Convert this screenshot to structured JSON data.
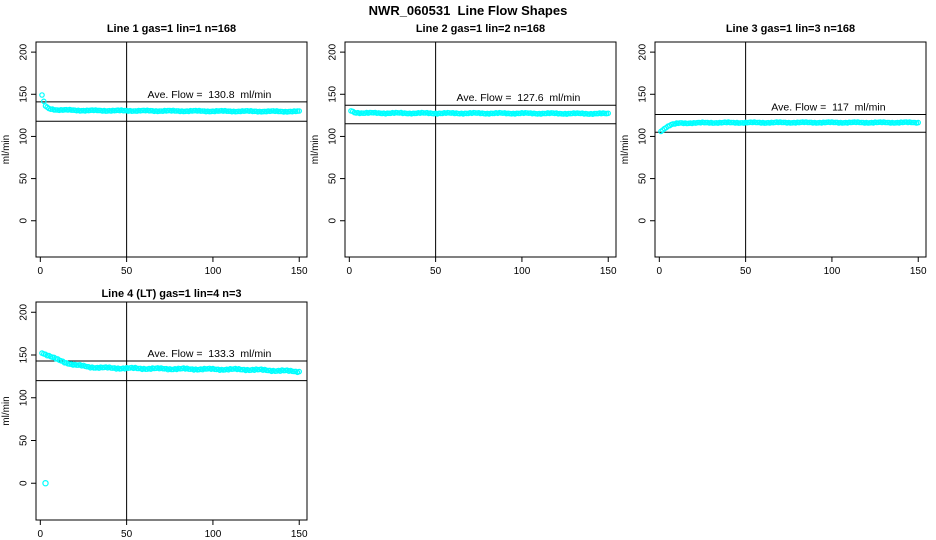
{
  "page": {
    "title": "NWR_060531  Line Flow Shapes"
  },
  "axes": {
    "ylabel": "ml/min",
    "yticks": [
      0,
      50,
      100,
      150,
      200
    ],
    "xticks": [
      0,
      50,
      100,
      150
    ],
    "ylim": [
      -43,
      212
    ],
    "xlim": [
      -2.5,
      154.5
    ]
  },
  "chart_data": [
    {
      "type": "scatter",
      "title": "Line 1 gas=1 lin=1 n=168",
      "annotation": "Ave. Flow =  130.8  ml/min",
      "ave_flow_ml_min": 130.8,
      "upper_line": 141,
      "lower_line": 118,
      "vline_x": 50,
      "point_color": "#00FFFF",
      "n_points": 150,
      "jitter": 0.7,
      "anchors": [
        [
          1,
          149
        ],
        [
          2,
          141
        ],
        [
          3,
          136
        ],
        [
          5,
          133
        ],
        [
          10,
          131.5
        ],
        [
          25,
          130.8
        ],
        [
          60,
          130.4
        ],
        [
          100,
          130
        ],
        [
          150,
          129.6
        ]
      ],
      "outliers": []
    },
    {
      "type": "scatter",
      "title": "Line 2 gas=1 lin=2 n=168",
      "annotation": "Ave. Flow =  127.6  ml/min",
      "ave_flow_ml_min": 127.6,
      "upper_line": 137,
      "lower_line": 115,
      "vline_x": 50,
      "point_color": "#00FFFF",
      "n_points": 150,
      "jitter": 0.8,
      "anchors": [
        [
          1,
          130.5
        ],
        [
          3,
          128.5
        ],
        [
          8,
          127.8
        ],
        [
          30,
          127.6
        ],
        [
          100,
          127.4
        ],
        [
          150,
          127
        ]
      ],
      "outliers": []
    },
    {
      "type": "scatter",
      "title": "Line 3 gas=1 lin=3 n=168",
      "annotation": "Ave. Flow =  117  ml/min",
      "ave_flow_ml_min": 117,
      "upper_line": 126,
      "lower_line": 105,
      "vline_x": 50,
      "point_color": "#00FFFF",
      "n_points": 150,
      "jitter": 0.7,
      "anchors": [
        [
          1,
          106.5
        ],
        [
          2,
          108
        ],
        [
          4,
          111
        ],
        [
          7,
          114
        ],
        [
          12,
          115.8
        ],
        [
          30,
          116.3
        ],
        [
          80,
          116.5
        ],
        [
          150,
          116.5
        ]
      ],
      "outliers": []
    },
    {
      "type": "scatter",
      "title": "Line 4 (LT) gas=1 lin=4 n=3",
      "annotation": "Ave. Flow =  133.3  ml/min",
      "ave_flow_ml_min": 133.3,
      "upper_line": 143,
      "lower_line": 120,
      "vline_x": 50,
      "point_color": "#00FFFF",
      "n_points": 150,
      "jitter": 1.1,
      "anchors": [
        [
          1,
          153
        ],
        [
          3,
          151
        ],
        [
          6,
          148
        ],
        [
          10,
          144.5
        ],
        [
          15,
          141
        ],
        [
          20,
          138.5
        ],
        [
          28,
          136
        ],
        [
          40,
          134.8
        ],
        [
          60,
          134.2
        ],
        [
          90,
          133.5
        ],
        [
          120,
          133
        ],
        [
          150,
          130.8
        ]
      ],
      "outliers": [
        [
          3,
          0
        ]
      ]
    }
  ]
}
